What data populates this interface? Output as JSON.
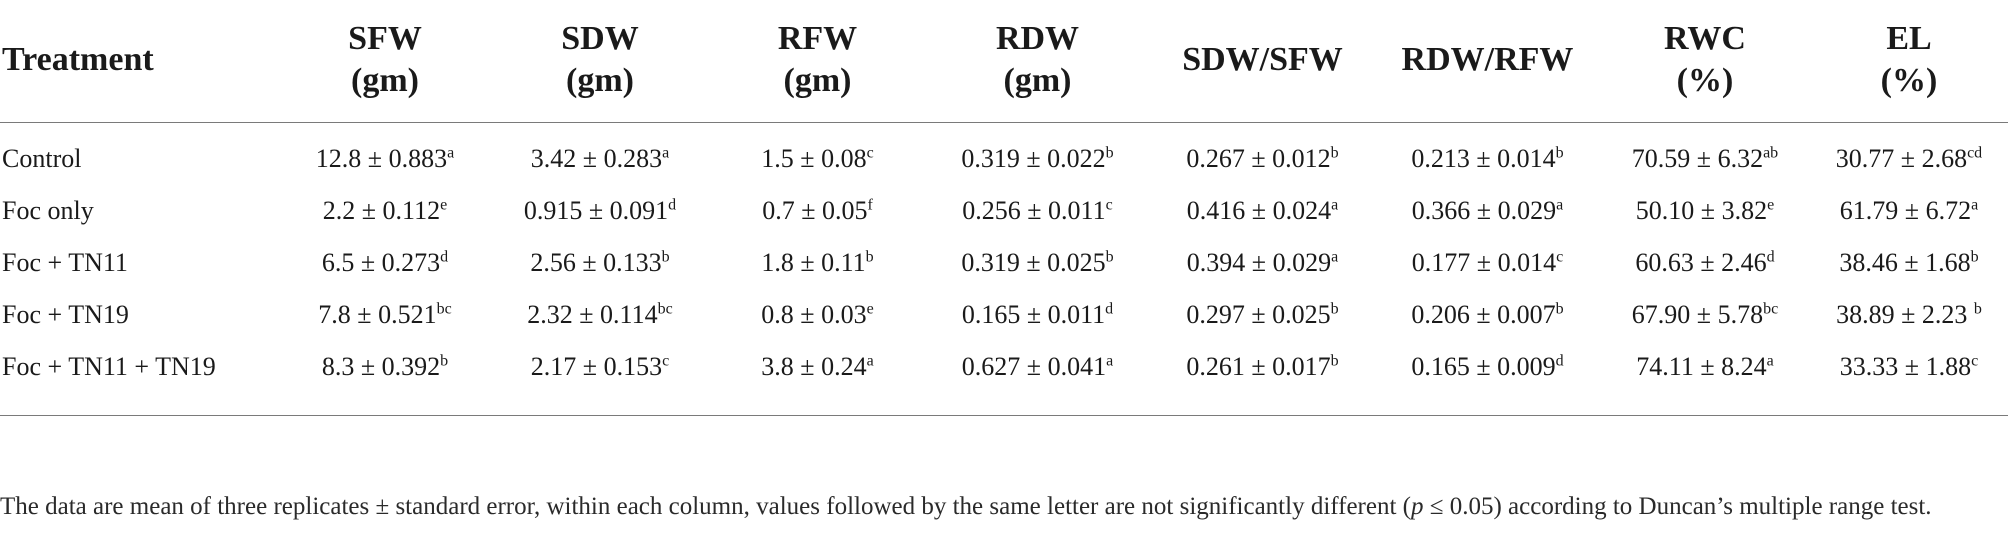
{
  "table": {
    "headers": [
      {
        "line1": "Treatment",
        "line2": ""
      },
      {
        "line1": "SFW",
        "line2": "(gm)"
      },
      {
        "line1": "SDW",
        "line2": "(gm)"
      },
      {
        "line1": "RFW",
        "line2": "(gm)"
      },
      {
        "line1": "RDW",
        "line2": "(gm)"
      },
      {
        "line1": "SDW/SFW",
        "line2": ""
      },
      {
        "line1": "RDW/RFW",
        "line2": ""
      },
      {
        "line1": "RWC",
        "line2": "(%)"
      },
      {
        "line1": "EL",
        "line2": "(%)"
      }
    ],
    "rows": [
      {
        "treatment": "Control",
        "cells": [
          {
            "v": "12.8 ± 0.883",
            "s": "a"
          },
          {
            "v": "3.42 ± 0.283",
            "s": "a"
          },
          {
            "v": "1.5 ± 0.08",
            "s": "c"
          },
          {
            "v": "0.319 ± 0.022",
            "s": "b"
          },
          {
            "v": "0.267 ± 0.012",
            "s": "b"
          },
          {
            "v": "0.213 ± 0.014",
            "s": "b"
          },
          {
            "v": "70.59 ± 6.32",
            "s": "ab"
          },
          {
            "v": "30.77 ± 2.68",
            "s": "cd"
          }
        ]
      },
      {
        "treatment": "Foc only",
        "cells": [
          {
            "v": "2.2 ± 0.112",
            "s": "e"
          },
          {
            "v": "0.915 ± 0.091",
            "s": "d"
          },
          {
            "v": "0.7 ± 0.05",
            "s": "f"
          },
          {
            "v": "0.256 ± 0.011",
            "s": "c"
          },
          {
            "v": "0.416 ± 0.024",
            "s": "a"
          },
          {
            "v": "0.366 ± 0.029",
            "s": "a"
          },
          {
            "v": "50.10 ± 3.82",
            "s": "e"
          },
          {
            "v": "61.79 ± 6.72",
            "s": "a"
          }
        ]
      },
      {
        "treatment": "Foc + TN11",
        "cells": [
          {
            "v": "6.5 ± 0.273",
            "s": "d"
          },
          {
            "v": "2.56 ± 0.133",
            "s": "b"
          },
          {
            "v": "1.8 ± 0.11",
            "s": "b"
          },
          {
            "v": "0.319 ± 0.025",
            "s": "b"
          },
          {
            "v": "0.394 ± 0.029",
            "s": "a"
          },
          {
            "v": "0.177 ± 0.014",
            "s": "c"
          },
          {
            "v": "60.63 ± 2.46",
            "s": "d"
          },
          {
            "v": "38.46 ± 1.68",
            "s": "b"
          }
        ]
      },
      {
        "treatment": "Foc + TN19",
        "cells": [
          {
            "v": "7.8 ± 0.521",
            "s": "bc"
          },
          {
            "v": "2.32 ± 0.114",
            "s": "bc"
          },
          {
            "v": "0.8 ± 0.03",
            "s": "e"
          },
          {
            "v": "0.165 ± 0.011",
            "s": "d"
          },
          {
            "v": "0.297 ± 0.025",
            "s": "b"
          },
          {
            "v": "0.206 ± 0.007",
            "s": "b"
          },
          {
            "v": "67.90 ± 5.78",
            "s": "bc"
          },
          {
            "v": "38.89 ± 2.23 ",
            "s": "b"
          }
        ]
      },
      {
        "treatment": "Foc + TN11 + TN19",
        "cells": [
          {
            "v": "8.3 ± 0.392",
            "s": "b"
          },
          {
            "v": "2.17 ± 0.153",
            "s": "c"
          },
          {
            "v": "3.8 ± 0.24",
            "s": "a"
          },
          {
            "v": "0.627 ± 0.041",
            "s": "a"
          },
          {
            "v": "0.261 ± 0.017",
            "s": "b"
          },
          {
            "v": "0.165 ± 0.009",
            "s": "d"
          },
          {
            "v": "74.11 ± 8.24",
            "s": "a"
          },
          {
            "v": "33.33 ± 1.88",
            "s": "c"
          }
        ]
      }
    ]
  },
  "footnote": {
    "part1": "The data are mean of three replicates ± standard error, within each column, values followed by the same letter are not significantly different (",
    "p": "p",
    "part2": " ≤ 0.05) according to Duncan’s multiple range test."
  }
}
